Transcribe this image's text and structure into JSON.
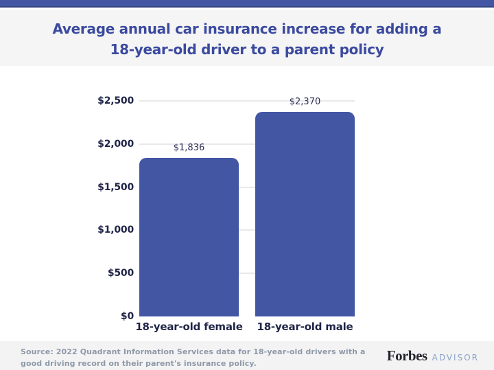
{
  "header": {
    "title_line1": "Average annual car insurance increase for adding a",
    "title_line2": "18-year-old driver to a parent policy"
  },
  "chart_data": {
    "type": "bar",
    "title": "Average annual car insurance increase for adding a 18-year-old driver to a parent policy",
    "categories": [
      "18-year-old female",
      "18-year-old male"
    ],
    "values": [
      1836,
      2370
    ],
    "value_labels": [
      "$1,836",
      "$2,370"
    ],
    "ylim": [
      0,
      2500
    ],
    "yticks": [
      0,
      500,
      1000,
      1500,
      2000,
      2500
    ],
    "ytick_labels": [
      "$0",
      "$500",
      "$1,000",
      "$1,500",
      "$2,000",
      "$2,500"
    ],
    "grid": "horizontal gridlines at ticks above 0, no axis line",
    "legend": "none",
    "xlabel": "",
    "ylabel": ""
  },
  "footer": {
    "source_line1": "Source: 2022 Quadrant Information Services data for 18-year-old drivers with a",
    "source_line2": "good driving record on their parent's insurance policy.",
    "brand": "Forbes",
    "brand_suffix": "ADVISOR"
  },
  "colors": {
    "accent_bar": "#4356a4",
    "title": "#3b4a9e",
    "axis_text": "#1f2447",
    "gridline": "#e9e9eb",
    "header_bg": "#f5f5f6",
    "footer_bg": "#f3f3f4",
    "source_text": "#8e99a8",
    "brand_text": "#24242c",
    "brand_suffix_text": "#8aa3c9"
  }
}
